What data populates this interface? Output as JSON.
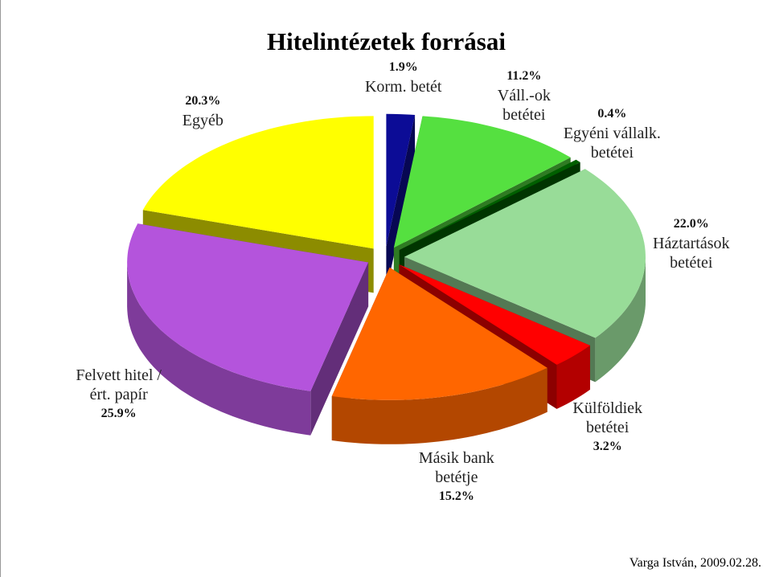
{
  "chart_data": {
    "type": "pie3d",
    "title": "Hitelintézetek forrásai",
    "categories": [
      "Korm. betét",
      "Váll.-ok betétei",
      "Egyéni vállalk. betétei",
      "Háztartások betétei",
      "Külföldiek betétei",
      "Másik bank betétje",
      "Felvett hitel / ért. papír",
      "Egyéb"
    ],
    "values": [
      1.9,
      11.2,
      0.4,
      22.0,
      3.2,
      15.2,
      25.9,
      20.3
    ],
    "value_labels": [
      "1.9%",
      "11.2%",
      "0.4%",
      "22.0%",
      "3.2%",
      "15.2%",
      "25.9%",
      "20.3%"
    ],
    "colors": [
      "#0c0c96",
      "#55e040",
      "#006000",
      "#98dc98",
      "#ff0000",
      "#ff6600",
      "#b454dc",
      "#ffff00"
    ],
    "note": "Varga István, 2009.02.28."
  }
}
